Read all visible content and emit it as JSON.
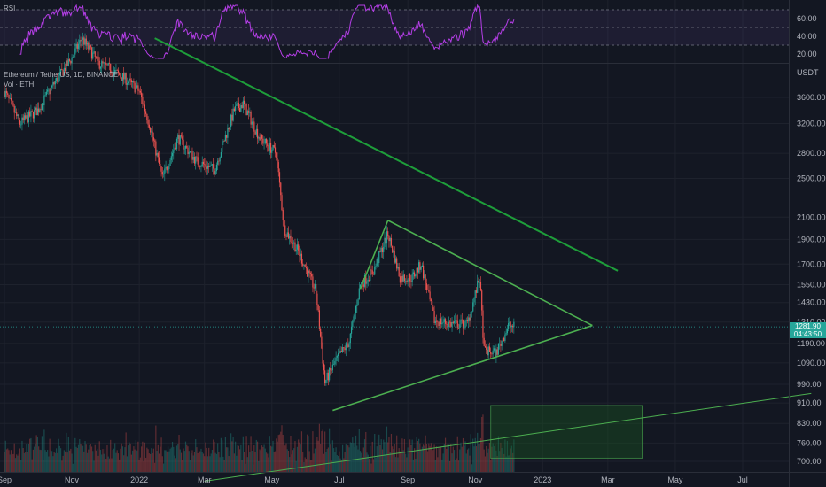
{
  "rsi_panel": {
    "label": "RSI",
    "levels": [
      60,
      40,
      20
    ],
    "ylim": [
      15,
      75
    ],
    "band_top": 70,
    "band_bottom": 30,
    "mid": 50,
    "line_color": "#b43ee6"
  },
  "main_panel": {
    "symbol_text": "Ethereum / TetherUS, 1D, BINANCE",
    "volume_text": "Vol · ETH",
    "unit_label": "USDT",
    "log_scale": true,
    "price_ticks": [
      3600,
      3200,
      2800,
      2500,
      2100,
      1900,
      1700,
      1550,
      1430,
      1310,
      1190,
      1090,
      990,
      910,
      830,
      760,
      700
    ],
    "current_price": "1281.90",
    "countdown": "04:43:50"
  },
  "colors": {
    "background": "#131722",
    "up": "#26a69a",
    "down": "#ef5350",
    "trendline": "#1e9e3a",
    "support": "#4caf50",
    "box_fill": "#1b5e20"
  },
  "time_axis": {
    "labels": [
      {
        "date": "2021-09-01",
        "text": "Sep"
      },
      {
        "date": "2021-11-01",
        "text": "Nov"
      },
      {
        "date": "2022-01-01",
        "text": "2022"
      },
      {
        "date": "2022-03-01",
        "text": "Mar"
      },
      {
        "date": "2022-05-01",
        "text": "May"
      },
      {
        "date": "2022-07-01",
        "text": "Jul"
      },
      {
        "date": "2022-09-01",
        "text": "Sep"
      },
      {
        "date": "2022-11-01",
        "text": "Nov"
      },
      {
        "date": "2023-01-01",
        "text": "2023"
      },
      {
        "date": "2023-03-01",
        "text": "Mar"
      },
      {
        "date": "2023-05-01",
        "text": "May"
      },
      {
        "date": "2023-07-01",
        "text": "Jul"
      }
    ]
  },
  "chart_data": {
    "type": "line",
    "series": [
      {
        "x": [
          "2021-09-01",
          "2021-09-15",
          "2021-10-01",
          "2021-10-15",
          "2021-11-01",
          "2021-11-10",
          "2021-11-25",
          "2021-12-05",
          "2021-12-20",
          "2022-01-01",
          "2022-01-10",
          "2022-01-22",
          "2022-02-05",
          "2022-02-22",
          "2022-03-10",
          "2022-03-28",
          "2022-04-05",
          "2022-04-20",
          "2022-05-05",
          "2022-05-12",
          "2022-05-25",
          "2022-06-10",
          "2022-06-18",
          "2022-06-28",
          "2022-07-10",
          "2022-07-20",
          "2022-08-01",
          "2022-08-14",
          "2022-08-25",
          "2022-09-05",
          "2022-09-13",
          "2022-09-25",
          "2022-10-10",
          "2022-10-25",
          "2022-11-05",
          "2022-11-09",
          "2022-11-20",
          "2022-12-01",
          "2022-12-06"
        ],
        "y": [
          3700,
          3200,
          3400,
          3800,
          4300,
          4700,
          4200,
          4100,
          3900,
          3700,
          3200,
          2500,
          3000,
          2700,
          2600,
          3400,
          3500,
          3000,
          2800,
          2000,
          1800,
          1500,
          1000,
          1100,
          1200,
          1550,
          1650,
          1950,
          1600,
          1600,
          1700,
          1320,
          1300,
          1300,
          1600,
          1150,
          1140,
          1290,
          1282
        ]
      }
    ],
    "annotations": {
      "descending_resistance": [
        {
          "date": "2022-01-15",
          "price": 4700
        },
        {
          "date": "2023-03-10",
          "price": 1650
        }
      ],
      "triangle_upper": [
        {
          "date": "2022-08-14",
          "price": 2070
        },
        {
          "date": "2023-02-15",
          "price": 1290
        }
      ],
      "triangle_lower": [
        {
          "date": "2022-06-25",
          "price": 880
        },
        {
          "date": "2023-02-15",
          "price": 1290
        }
      ],
      "rising_channel": [
        {
          "date": "2022-07-20",
          "price": 1520
        },
        {
          "date": "2022-08-14",
          "price": 2070
        }
      ],
      "long_support": [
        {
          "date": "2022-03-01",
          "price": 640
        },
        {
          "date": "2023-09-01",
          "price": 950
        }
      ],
      "demand_zone": {
        "x_start": "2022-11-15",
        "x_end": "2023-04-01",
        "price_low": 710,
        "price_high": 900
      }
    }
  }
}
